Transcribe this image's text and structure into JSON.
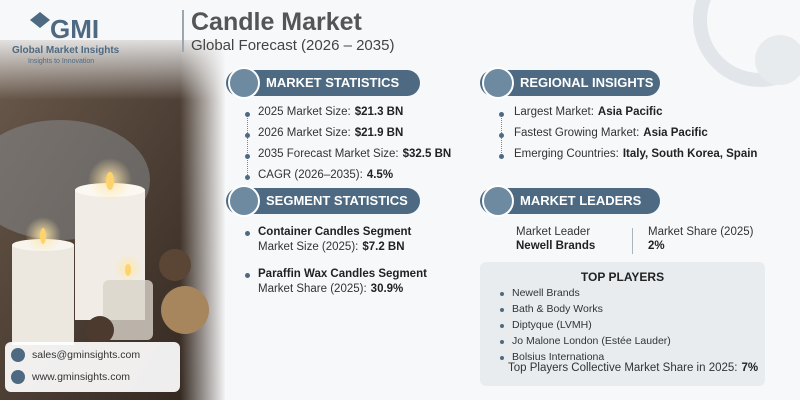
{
  "logo": {
    "mark": "GMI",
    "name": "Global Market Insights",
    "tagline": "Insights to Innovation"
  },
  "header": {
    "title": "Candle Market",
    "subtitle": "Global Forecast (2026 – 2035)"
  },
  "market_statistics": {
    "heading": "MARKET STATISTICS",
    "items": [
      {
        "label": "2025 Market Size:",
        "value": "$21.3 BN"
      },
      {
        "label": "2026 Market Size:",
        "value": "$21.9 BN"
      },
      {
        "label": "2035 Forecast Market Size:",
        "value": "$32.5 BN"
      },
      {
        "label": "CAGR (2026–2035):",
        "value": "4.5%"
      }
    ]
  },
  "regional_insights": {
    "heading": "REGIONAL INSIGHTS",
    "items": [
      {
        "label": "Largest Market:",
        "value": "Asia Pacific"
      },
      {
        "label": "Fastest Growing Market:",
        "value": "Asia Pacific"
      },
      {
        "label": "Emerging Countries:",
        "value": "Italy, South Korea, Spain"
      }
    ]
  },
  "segment_statistics": {
    "heading": "SEGMENT STATISTICS",
    "items": [
      {
        "title": "Container Candles Segment",
        "label": "Market Size (2025):",
        "value": "$7.2 BN"
      },
      {
        "title": "Paraffin Wax Candles Segment",
        "label": "Market Share (2025):",
        "value": "30.9%"
      }
    ]
  },
  "market_leaders": {
    "heading": "MARKET LEADERS",
    "leader_label": "Market Leader",
    "leader": "Newell Brands",
    "share_label": "Market Share (2025)",
    "share": "2%"
  },
  "top_players": {
    "title": "TOP PLAYERS",
    "players": [
      "Newell Brands",
      "Bath & Body Works",
      "Diptyque (LVMH)",
      "Jo Malone London (Estée Lauder)",
      "Bolsius Internationa"
    ],
    "footer_label": "Top Players Collective Market Share in 2025:",
    "footer_value": "7%"
  },
  "contact": {
    "email": "sales@gminsights.com",
    "website": "www.gminsights.com"
  }
}
